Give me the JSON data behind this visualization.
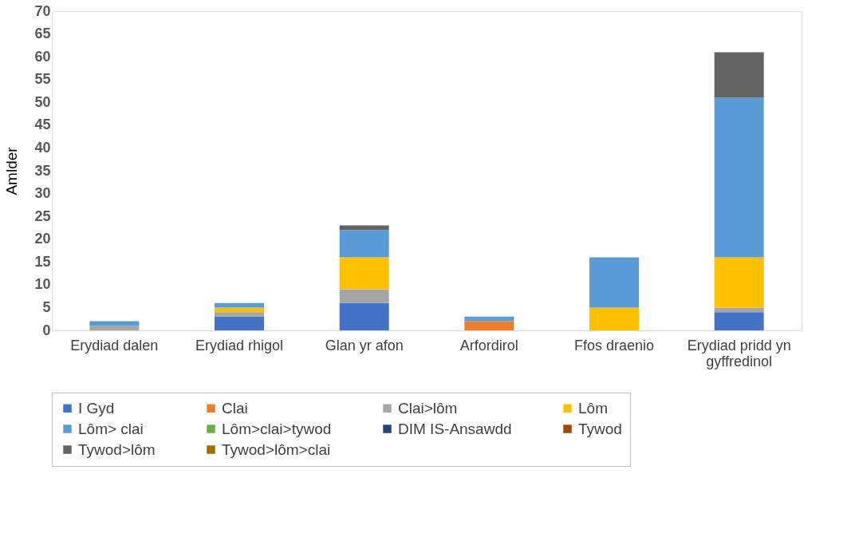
{
  "chart_data": {
    "type": "bar",
    "stacked": true,
    "ylabel": "Amlder",
    "categories": [
      "Erydiad dalen",
      "Erydiad rhigol",
      "Glan yr afon",
      "Arfordirol",
      "Ffos draenio",
      "Erydiad pridd yn gyffredinol"
    ],
    "series": [
      {
        "name": "I Gyd",
        "color": "#4472c4",
        "values": [
          null,
          3,
          6,
          null,
          null,
          4
        ]
      },
      {
        "name": "Clai",
        "color": "#ed7d31",
        "values": [
          null,
          null,
          null,
          2,
          null,
          null
        ]
      },
      {
        "name": "Clai>lôm",
        "color": "#a5a5a5",
        "values": [
          1,
          1,
          3,
          null,
          null,
          1
        ]
      },
      {
        "name": "Lôm",
        "color": "#ffc000",
        "values": [
          null,
          1,
          7,
          null,
          5,
          11
        ]
      },
      {
        "name": "Lôm> clai",
        "color": "#5b9bd5",
        "values": [
          1,
          1,
          6,
          1,
          11,
          35
        ]
      },
      {
        "name": "Lôm>clai>tywod",
        "color": "#70ad47",
        "values": [
          null,
          null,
          null,
          null,
          null,
          null
        ]
      },
      {
        "name": "DIM IS-Ansawdd",
        "color": "#264478",
        "values": [
          null,
          null,
          null,
          null,
          null,
          null
        ]
      },
      {
        "name": "Tywod",
        "color": "#9e480e",
        "values": [
          null,
          null,
          null,
          null,
          null,
          null
        ]
      },
      {
        "name": "Tywod>lôm",
        "color": "#636363",
        "values": [
          null,
          null,
          1,
          null,
          null,
          10
        ]
      },
      {
        "name": "Tywod>lôm>clai",
        "color": "#997300",
        "values": [
          null,
          null,
          null,
          null,
          null,
          null
        ]
      }
    ],
    "ylim": [
      0,
      70
    ],
    "yticks": [
      0,
      5,
      10,
      15,
      20,
      25,
      30,
      35,
      40,
      45,
      50,
      55,
      60,
      65,
      70
    ],
    "grid": false,
    "legend": "bottom"
  }
}
